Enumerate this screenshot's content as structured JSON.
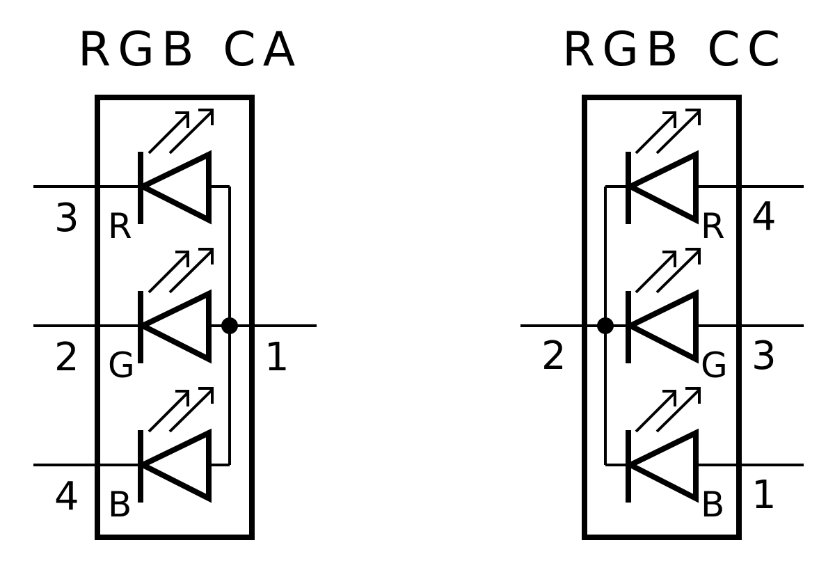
{
  "symbols": [
    {
      "title": "RGB CA",
      "leds": [
        {
          "color": "R",
          "pin": "3"
        },
        {
          "color": "G",
          "pin": "2"
        },
        {
          "color": "B",
          "pin": "4"
        }
      ],
      "common_pin": "1"
    },
    {
      "title": "RGB CC",
      "leds": [
        {
          "color": "R",
          "pin": "4"
        },
        {
          "color": "G",
          "pin": "3"
        },
        {
          "color": "B",
          "pin": "1"
        }
      ],
      "common_pin": "2"
    }
  ]
}
